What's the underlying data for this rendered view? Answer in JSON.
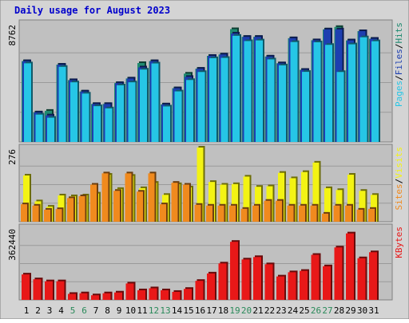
{
  "chart_data": {
    "type": "bar",
    "title": "Daily usage for August 2023",
    "categories": [
      "1",
      "2",
      "3",
      "4",
      "5",
      "6",
      "7",
      "8",
      "9",
      "10",
      "11",
      "12",
      "13",
      "14",
      "15",
      "16",
      "17",
      "18",
      "19",
      "20",
      "21",
      "22",
      "23",
      "24",
      "25",
      "26",
      "27",
      "28",
      "29",
      "30",
      "31"
    ],
    "weekend_days": [
      "5",
      "6",
      "12",
      "13",
      "19",
      "20",
      "26",
      "27"
    ],
    "colors": {
      "hits": "#1f8a70",
      "files": "#1d3fb0",
      "pages": "#26c6e6",
      "visits": "#f3f314",
      "sites": "#f08a1e",
      "kbytes": "#e81818",
      "weekday_label": "#000000",
      "weekend_label": "#2a8a5a",
      "title": "#0000cc",
      "panel_bg": "#c0c0c0",
      "frame_bg": "#d4d4d4"
    },
    "panels": [
      {
        "id": "hits-files-pages",
        "max_label": "8762",
        "ymax": 8762,
        "legend": [
          "Pages",
          "Files",
          "Hits"
        ],
        "series": [
          {
            "name": "Hits",
            "key": "hits",
            "values": [
              5960,
              2180,
              2300,
              5700,
              4560,
              3720,
              2800,
              2800,
              4340,
              4680,
              5820,
              5960,
              2770,
              3960,
              5040,
              5400,
              6350,
              6450,
              8320,
              7750,
              7750,
              6300,
              5800,
              7650,
              5320,
              7500,
              8300,
              8480,
              7490,
              8170,
              7610
            ]
          },
          {
            "name": "Files",
            "key": "files",
            "values": [
              5960,
              2180,
              1960,
              5700,
              4560,
              3720,
              2800,
              2800,
              4340,
              4680,
              5500,
              5960,
              2770,
              3960,
              4800,
              5400,
              6350,
              6450,
              8000,
              7750,
              7750,
              6300,
              5800,
              7650,
              5320,
              7500,
              8300,
              8300,
              7490,
              8170,
              7610
            ]
          },
          {
            "name": "Pages",
            "key": "pages",
            "values": [
              5800,
              2020,
              1790,
              5540,
              4400,
              3570,
              2640,
              2480,
              4180,
              4400,
              5340,
              5790,
              2620,
              3730,
              4570,
              5160,
              6180,
              6200,
              7830,
              7440,
              7490,
              6090,
              5650,
              7370,
              5170,
              7350,
              7160,
              5160,
              7200,
              7720,
              7430
            ]
          }
        ]
      },
      {
        "id": "visits-sites",
        "max_label": "276",
        "ymax": 276,
        "legend": [
          "Sites",
          "Visits"
        ],
        "series": [
          {
            "name": "Visits",
            "key": "visits",
            "values": [
              172,
              76,
              56,
              98,
              95,
              98,
              105,
              175,
              122,
              171,
              125,
              145,
              100,
              140,
              128,
              276,
              148,
              138,
              140,
              168,
              130,
              132,
              182,
              162,
              185,
              220,
              125,
              118,
              175,
              115,
              100
            ]
          },
          {
            "name": "Sites",
            "key": "sites",
            "values": [
              65,
              60,
              45,
              47,
              88,
              95,
              138,
              180,
              115,
              180,
              112,
              180,
              65,
              145,
              138,
              63,
              60,
              60,
              60,
              48,
              60,
              78,
              78,
              60,
              60,
              60,
              30,
              60,
              60,
              45,
              48
            ]
          }
        ]
      },
      {
        "id": "kbytes",
        "max_label": "362440",
        "ymax": 362440,
        "legend": [
          "KBytes"
        ],
        "series": [
          {
            "name": "KBytes",
            "key": "kbytes",
            "values": [
              127000,
              103000,
              93000,
              93000,
              30000,
              33000,
              23000,
              33000,
              37000,
              82000,
              48000,
              58000,
              48000,
              40000,
              55000,
              95000,
              132000,
              182000,
              290000,
              202000,
              214000,
              178000,
              117000,
              138000,
              145000,
              225000,
              168000,
              262000,
              332000,
              208000,
              238000
            ]
          }
        ]
      }
    ]
  }
}
